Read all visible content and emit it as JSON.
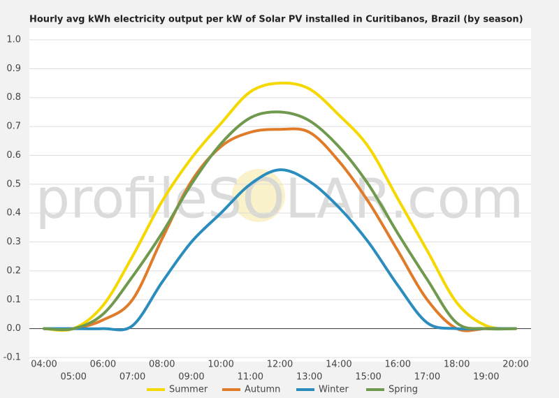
{
  "chart_data": {
    "type": "line",
    "title": "Hourly avg kWh electricity output per kW of Solar PV installed in Curitibanos, Brazil (by season)",
    "watermark": "profileSOLAR.com",
    "categories": [
      "04:00",
      "05:00",
      "06:00",
      "07:00",
      "08:00",
      "09:00",
      "10:00",
      "11:00",
      "12:00",
      "13:00",
      "14:00",
      "15:00",
      "16:00",
      "17:00",
      "18:00",
      "19:00",
      "20:00"
    ],
    "series": [
      {
        "name": "Summer",
        "color": "#f5d800",
        "values": [
          0,
          0,
          0.08,
          0.25,
          0.44,
          0.59,
          0.71,
          0.82,
          0.85,
          0.83,
          0.74,
          0.63,
          0.45,
          0.27,
          0.09,
          0.01,
          0
        ]
      },
      {
        "name": "Autumn",
        "color": "#e07b2a",
        "values": [
          0,
          0,
          0.03,
          0.1,
          0.31,
          0.51,
          0.63,
          0.68,
          0.69,
          0.68,
          0.58,
          0.44,
          0.27,
          0.1,
          0,
          0,
          0
        ]
      },
      {
        "name": "Winter",
        "color": "#2b8cbe",
        "values": [
          0,
          0,
          0,
          0.01,
          0.16,
          0.3,
          0.4,
          0.5,
          0.55,
          0.51,
          0.42,
          0.3,
          0.15,
          0.02,
          0,
          0,
          0
        ]
      },
      {
        "name": "Spring",
        "color": "#6f9a4e",
        "values": [
          0,
          0,
          0.05,
          0.18,
          0.33,
          0.5,
          0.64,
          0.73,
          0.75,
          0.72,
          0.63,
          0.5,
          0.33,
          0.17,
          0.02,
          0,
          0
        ]
      }
    ],
    "ylim": [
      -0.1,
      1
    ],
    "yticks": [
      {
        "value": -0.1,
        "label": "-0.1"
      },
      {
        "value": 0,
        "label": "0.0"
      },
      0.1,
      0.2,
      0.3,
      0.4,
      0.5,
      0.6,
      0.7,
      0.8,
      0.9,
      {
        "value": 1,
        "label": "1.0"
      }
    ],
    "grid": true
  }
}
